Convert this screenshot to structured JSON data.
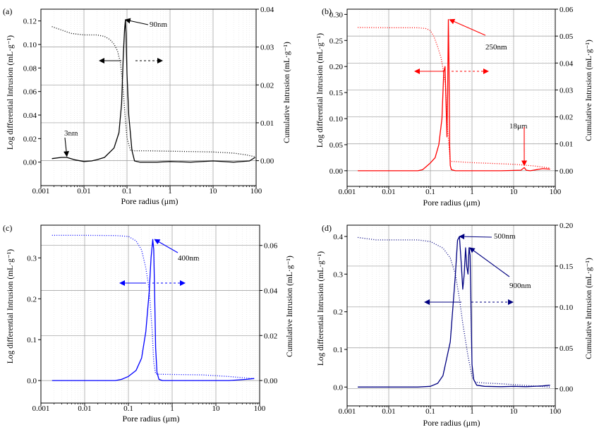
{
  "shared": {
    "xlabel": "Pore radius (μm)",
    "ylabel_left": "Log differential Intrusion (mL·g⁻¹)",
    "ylabel_right": "Cumulative Intrusion (mL·g⁻¹)",
    "x_ticks": [
      "0.001",
      "0.01",
      "0.1",
      "1",
      "10",
      "100"
    ]
  },
  "chart_data": [
    {
      "type": "line",
      "panel_label": "(a)",
      "color": "#000000",
      "xscale": "log",
      "xlim": [
        0.001,
        100
      ],
      "ylim_left": [
        -0.02,
        0.13
      ],
      "ylim_right": [
        -0.0066,
        0.04
      ],
      "yticks_left": [
        "0.00",
        "0.02",
        "0.04",
        "0.06",
        "0.08",
        "0.10",
        "0.12"
      ],
      "yticks_right": [
        "0.00",
        "0.01",
        "0.02",
        "0.03",
        "0.04"
      ],
      "series": [
        {
          "name": "Log differential Intrusion",
          "axis": "left",
          "style": "solid",
          "x": [
            0.0018,
            0.003,
            0.004,
            0.006,
            0.01,
            0.015,
            0.02,
            0.03,
            0.05,
            0.065,
            0.075,
            0.082,
            0.088,
            0.092,
            0.095,
            0.1,
            0.11,
            0.13,
            0.15,
            0.2,
            0.5,
            1,
            3,
            10,
            30,
            70,
            95
          ],
          "y": [
            0.003,
            0.004,
            0.004,
            0.002,
            0.0005,
            0.001,
            0.002,
            0.004,
            0.012,
            0.025,
            0.05,
            0.09,
            0.113,
            0.121,
            0.11,
            0.075,
            0.04,
            0.01,
            0.001,
            0.0,
            0.0,
            0.0005,
            0.0,
            0.001,
            0.0,
            0.001,
            0.004
          ]
        },
        {
          "name": "Cumulative Intrusion",
          "axis": "right",
          "style": "dotted",
          "x": [
            0.0018,
            0.003,
            0.005,
            0.01,
            0.02,
            0.03,
            0.04,
            0.05,
            0.06,
            0.07,
            0.08,
            0.09,
            0.1,
            0.12,
            0.15,
            0.3,
            1,
            3,
            10,
            30,
            60,
            95
          ],
          "y": [
            0.0354,
            0.0345,
            0.0336,
            0.0332,
            0.0332,
            0.0328,
            0.032,
            0.0308,
            0.029,
            0.026,
            0.02,
            0.012,
            0.006,
            0.0028,
            0.0026,
            0.0026,
            0.0025,
            0.0024,
            0.0023,
            0.002,
            0.0015,
            0.001
          ]
        }
      ],
      "annotations": [
        {
          "text": "90nm",
          "arrow_to_x": 0.092,
          "arrow_to_y": 0.121
        },
        {
          "text": "3nm",
          "arrow_to_x": 0.004,
          "arrow_to_y": 0.005
        }
      ],
      "axis_arrows": [
        "left",
        "right"
      ]
    },
    {
      "type": "line",
      "panel_label": "(b)",
      "color": "#ff0000",
      "xscale": "log",
      "xlim": [
        0.001,
        100
      ],
      "ylim_left": [
        -0.03,
        0.31
      ],
      "ylim_right": [
        -0.0058,
        0.06
      ],
      "yticks_left": [
        "0.00",
        "0.05",
        "0.10",
        "0.15",
        "0.20",
        "0.25",
        "0.30"
      ],
      "yticks_right": [
        "0.00",
        "0.01",
        "0.02",
        "0.03",
        "0.04",
        "0.05",
        "0.06"
      ],
      "series": [
        {
          "name": "Log differential Intrusion",
          "axis": "left",
          "style": "solid",
          "x": [
            0.0018,
            0.01,
            0.05,
            0.065,
            0.08,
            0.1,
            0.13,
            0.16,
            0.19,
            0.21,
            0.225,
            0.24,
            0.25,
            0.26,
            0.27,
            0.28,
            0.29,
            0.3,
            0.32,
            0.4,
            1,
            5,
            15,
            18,
            20,
            25,
            50,
            75
          ],
          "y": [
            0.0,
            0.0,
            0.0,
            0.002,
            0.008,
            0.015,
            0.025,
            0.05,
            0.1,
            0.19,
            0.2,
            0.12,
            0.065,
            0.15,
            0.29,
            0.2,
            0.05,
            0.01,
            0.002,
            0.0,
            0.0,
            0.0,
            0.001,
            0.006,
            0.001,
            0.0,
            0.004,
            0.003
          ]
        },
        {
          "name": "Cumulative Intrusion",
          "axis": "right",
          "style": "dotted",
          "x": [
            0.0018,
            0.01,
            0.05,
            0.08,
            0.1,
            0.12,
            0.15,
            0.18,
            0.2,
            0.23,
            0.26,
            0.3,
            0.5,
            1,
            5,
            10,
            30,
            75
          ],
          "y": [
            0.0532,
            0.0531,
            0.0531,
            0.0528,
            0.052,
            0.05,
            0.046,
            0.042,
            0.038,
            0.032,
            0.015,
            0.0035,
            0.0033,
            0.003,
            0.0026,
            0.0024,
            0.0018,
            0.001
          ]
        }
      ],
      "annotations": [
        {
          "text": "250nm",
          "arrow_to_x": 0.29,
          "arrow_to_y": 0.29
        },
        {
          "text": "18μm",
          "arrow_to_x": 18,
          "arrow_to_y": 0.01
        }
      ],
      "axis_arrows": [
        "left",
        "right"
      ]
    },
    {
      "type": "line",
      "panel_label": "(c)",
      "color": "#0000ff",
      "xscale": "log",
      "xlim": [
        0.001,
        100
      ],
      "ylim_left": [
        -0.055,
        0.38
      ],
      "ylim_right": [
        -0.01,
        0.069
      ],
      "yticks_left": [
        "0.0",
        "0.1",
        "0.2",
        "0.3"
      ],
      "yticks_right": [
        "0.00",
        "0.02",
        "0.04",
        "0.06"
      ],
      "series": [
        {
          "name": "Log differential Intrusion",
          "axis": "left",
          "style": "solid",
          "x": [
            0.0018,
            0.01,
            0.05,
            0.07,
            0.1,
            0.15,
            0.2,
            0.25,
            0.3,
            0.33,
            0.36,
            0.38,
            0.4,
            0.42,
            0.45,
            0.5,
            0.6,
            1,
            5,
            20,
            50,
            75
          ],
          "y": [
            0.0,
            0.0,
            0.0,
            0.003,
            0.01,
            0.025,
            0.055,
            0.12,
            0.22,
            0.3,
            0.345,
            0.32,
            0.2,
            0.08,
            0.02,
            0.003,
            0.0,
            0.0,
            0.0,
            0.0,
            0.003,
            0.005
          ]
        },
        {
          "name": "Cumulative Intrusion",
          "axis": "right",
          "style": "dotted",
          "x": [
            0.0018,
            0.01,
            0.05,
            0.1,
            0.15,
            0.2,
            0.25,
            0.3,
            0.35,
            0.38,
            0.42,
            0.5,
            1,
            5,
            20,
            75
          ],
          "y": [
            0.0645,
            0.0645,
            0.0644,
            0.064,
            0.062,
            0.058,
            0.05,
            0.04,
            0.022,
            0.008,
            0.003,
            0.0028,
            0.0027,
            0.0025,
            0.0018,
            0.0008
          ]
        }
      ],
      "annotations": [
        {
          "text": "400nm",
          "arrow_to_x": 0.4,
          "arrow_to_y": 0.345
        }
      ],
      "axis_arrows": [
        "left",
        "right"
      ]
    },
    {
      "type": "line",
      "panel_label": "(d)",
      "color": "#000080",
      "xscale": "log",
      "xlim": [
        0.001,
        100
      ],
      "ylim_left": [
        -0.05,
        0.43
      ],
      "ylim_right": [
        -0.021,
        0.2
      ],
      "yticks_left": [
        "0.0",
        "0.1",
        "0.2",
        "0.3",
        "0.4"
      ],
      "yticks_right": [
        "0.00",
        "0.05",
        "0.10",
        "0.15",
        "0.20"
      ],
      "series": [
        {
          "name": "Log differential Intrusion",
          "axis": "left",
          "style": "solid",
          "x": [
            0.0018,
            0.01,
            0.05,
            0.1,
            0.15,
            0.2,
            0.3,
            0.4,
            0.45,
            0.5,
            0.55,
            0.6,
            0.65,
            0.7,
            0.75,
            0.8,
            0.85,
            0.9,
            0.95,
            1,
            1.1,
            1.3,
            2,
            5,
            10,
            20,
            50,
            75
          ],
          "y": [
            0.0,
            0.0,
            0.0,
            0.002,
            0.01,
            0.03,
            0.12,
            0.3,
            0.39,
            0.4,
            0.33,
            0.26,
            0.3,
            0.37,
            0.32,
            0.3,
            0.37,
            0.35,
            0.2,
            0.06,
            0.02,
            0.005,
            0.002,
            0.001,
            0.002,
            0.001,
            0.003,
            0.005
          ]
        },
        {
          "name": "Cumulative Intrusion",
          "axis": "right",
          "style": "dotted",
          "x": [
            0.0018,
            0.005,
            0.01,
            0.05,
            0.1,
            0.2,
            0.3,
            0.4,
            0.5,
            0.6,
            0.8,
            1,
            1.2,
            2,
            5,
            20,
            75
          ],
          "y": [
            0.185,
            0.182,
            0.182,
            0.182,
            0.18,
            0.172,
            0.16,
            0.14,
            0.11,
            0.08,
            0.04,
            0.015,
            0.008,
            0.007,
            0.006,
            0.004,
            0.002
          ]
        }
      ],
      "annotations": [
        {
          "text": "500nm",
          "arrow_to_x": 0.5,
          "arrow_to_y": 0.4
        },
        {
          "text": "900nm",
          "arrow_to_x": 0.88,
          "arrow_to_y": 0.37
        }
      ],
      "axis_arrows": [
        "left",
        "right"
      ]
    }
  ]
}
